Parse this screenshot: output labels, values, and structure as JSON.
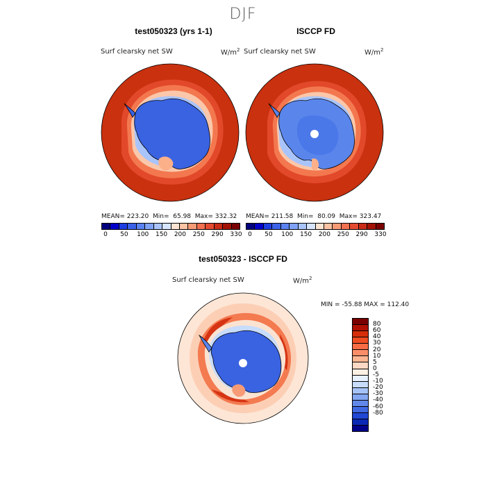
{
  "figure": {
    "season": "DJF"
  },
  "panels": {
    "left": {
      "title": "test050323 (yrs 1-1)",
      "variable": "Surf clearsky net SW",
      "units": "W/m",
      "units_exp": "2",
      "mean_label": "MEAN=",
      "mean": "223.20",
      "min_label": "Min=",
      "min": "65.98",
      "max_label": "Max=",
      "max": "332.32"
    },
    "right": {
      "title": "ISCCP FD",
      "variable": "Surf clearsky net SW",
      "units": "W/m",
      "units_exp": "2",
      "mean_label": "MEAN=",
      "mean": "211.58",
      "min_label": "Min=",
      "min": "80.09",
      "max_label": "Max=",
      "max": "323.47"
    },
    "diff": {
      "title": "test050323 - ISCCP FD",
      "variable": "Surf clearsky net SW",
      "units": "W/m",
      "units_exp": "2",
      "minmax": "MIN = -55.88 MAX = 112.40"
    }
  },
  "colorbar_top": {
    "colors": [
      "#00007f",
      "#0000c8",
      "#1d3ee0",
      "#3a62e8",
      "#5a82f0",
      "#7fa2f6",
      "#a9c4fb",
      "#d6e4fd",
      "#fde4d2",
      "#fbc2a4",
      "#f79b76",
      "#f2704f",
      "#e44a30",
      "#c92b16",
      "#a31205",
      "#7a0000"
    ],
    "tick_labels": [
      "0",
      "50",
      "100",
      "150",
      "200",
      "250",
      "290",
      "330"
    ]
  },
  "colorbar_diff": {
    "colors": [
      "#7a0000",
      "#b01002",
      "#d62e0a",
      "#ee4c22",
      "#f76c44",
      "#fb8e68",
      "#fcb592",
      "#fdd8c4",
      "#fdf0e4",
      "#e7f1ff",
      "#c8dcfb",
      "#a6c3f7",
      "#84a7f1",
      "#6289ea",
      "#4069e2",
      "#2148d4",
      "#0a28b6",
      "#00008a"
    ],
    "tick_labels": [
      "80",
      "60",
      "40",
      "30",
      "20",
      "10",
      "5",
      "0",
      "-5",
      "-10",
      "-20",
      "-30",
      "-40",
      "-60",
      "-80"
    ]
  },
  "map_colors": {
    "ocean_warm": "#c9310f",
    "ocean_mid": "#f0683e",
    "ice_edge": "#fbe3d2",
    "ice_light": "#6c97f2",
    "continent": "#3a63e2",
    "diff_base": "#fde6d6",
    "diff_pos": "#f06a3f",
    "diff_neg": "#3a63e2"
  }
}
